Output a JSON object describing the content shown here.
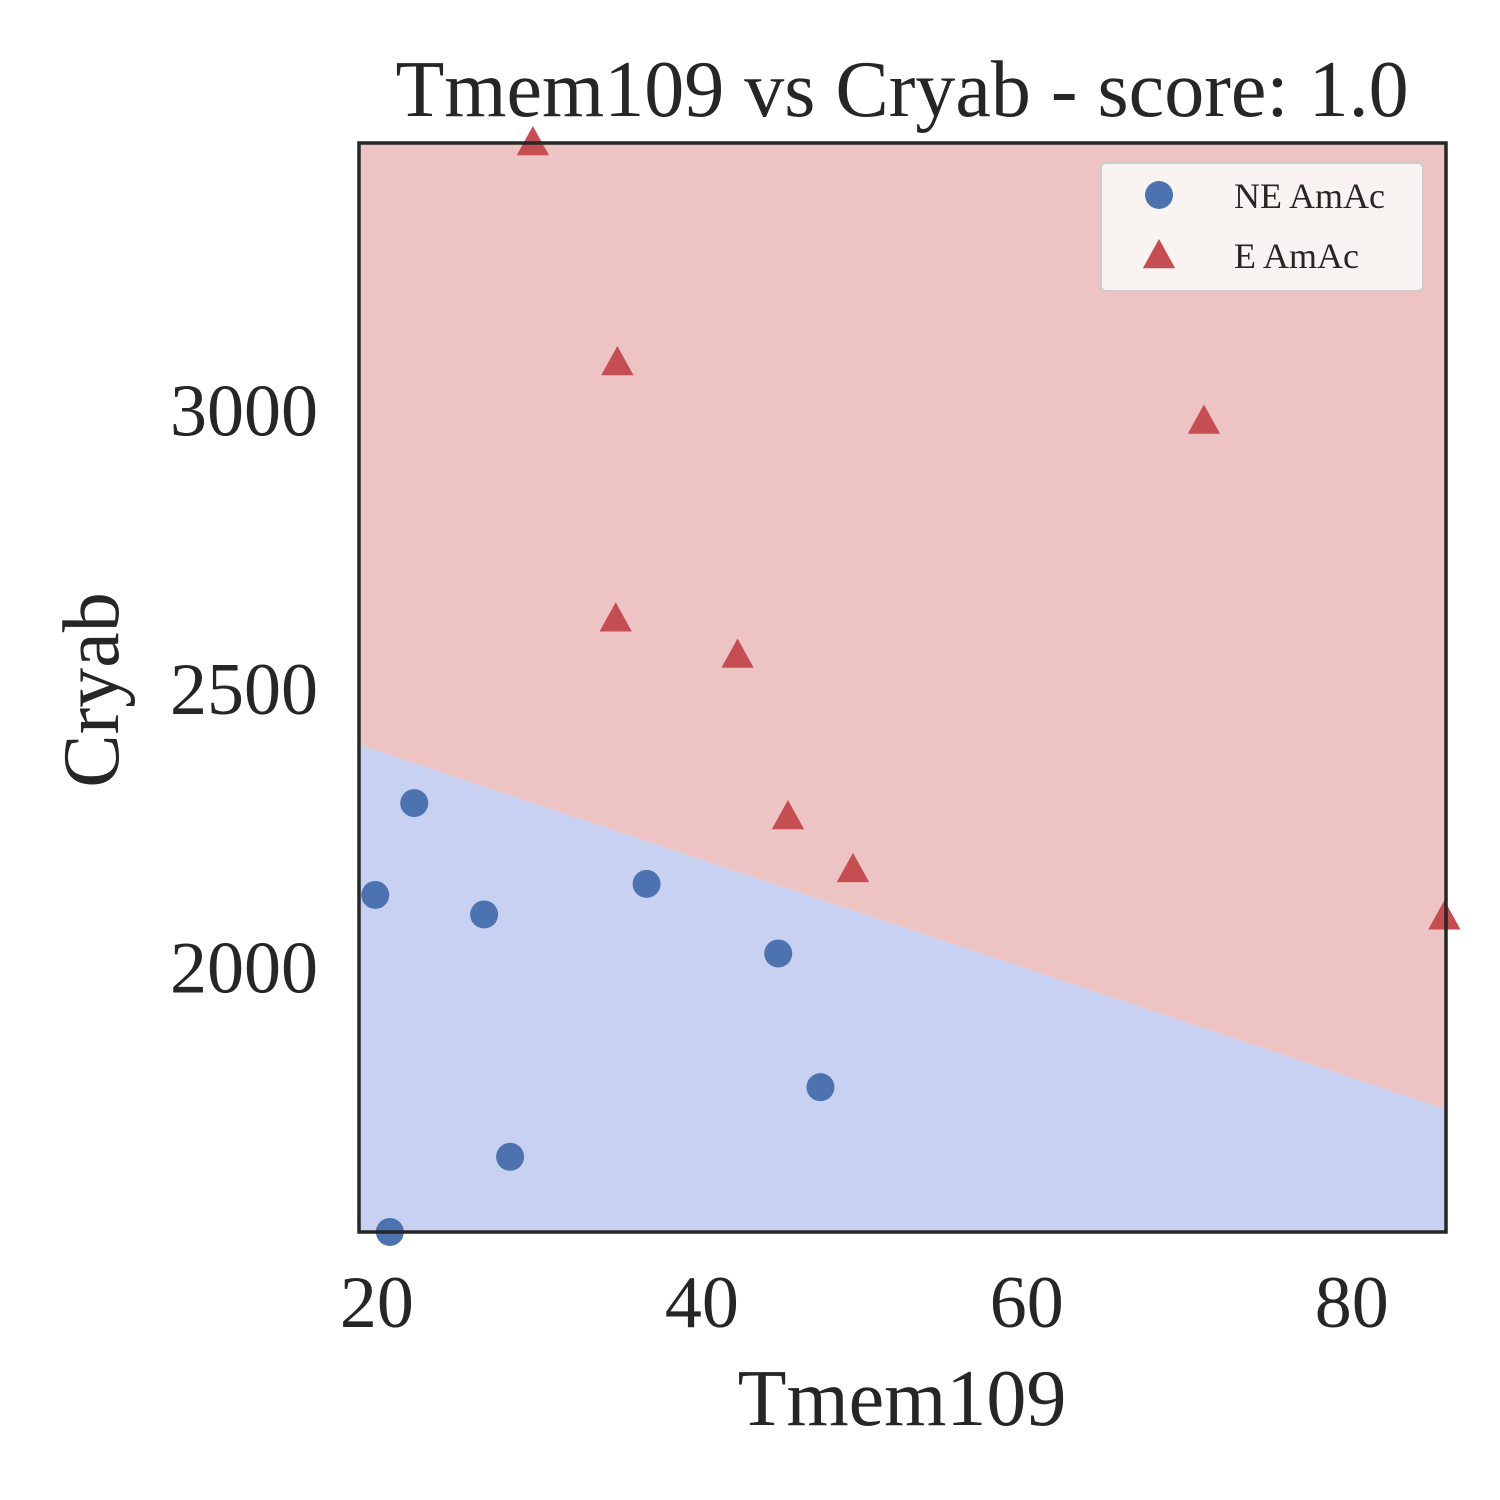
{
  "chart_data": {
    "type": "scatter",
    "title": "Tmem109 vs Cryab - score: 1.0",
    "xlabel": "Tmem109",
    "ylabel": "Cryab",
    "xlim": [
      18.9,
      85.8
    ],
    "ylim": [
      1525,
      3480
    ],
    "x_ticks": [
      20,
      40,
      60,
      80
    ],
    "x_tick_labels": [
      "20",
      "40",
      "60",
      "80"
    ],
    "y_ticks": [
      2000,
      2500,
      3000
    ],
    "y_tick_labels": [
      "2000",
      "2500",
      "3000"
    ],
    "grid": false,
    "legend_position": "top-right",
    "colors": {
      "ne_marker": "#4c72b0",
      "e_marker": "#c44e52",
      "ne_region": "#c8d1f2",
      "e_region": "#edc4c3",
      "axes": "#262626"
    },
    "decision_boundary": {
      "x": [
        18.9,
        85.8
      ],
      "y": [
        2400,
        1745
      ]
    },
    "series": [
      {
        "name": "NE AmAc",
        "marker": "circle",
        "x": [
          19.9,
          22.3,
          26.6,
          28.2,
          36.6,
          44.7,
          47.3,
          20.8
        ],
        "y": [
          2130,
          2295,
          2095,
          1660,
          2150,
          2025,
          1785,
          1525
        ]
      },
      {
        "name": "E AmAc",
        "marker": "triangle",
        "x": [
          29.6,
          34.8,
          34.7,
          42.2,
          45.3,
          49.3,
          70.9,
          85.7
        ],
        "y": [
          3480,
          3085,
          2625,
          2560,
          2270,
          2175,
          2980,
          2090
        ]
      }
    ]
  }
}
